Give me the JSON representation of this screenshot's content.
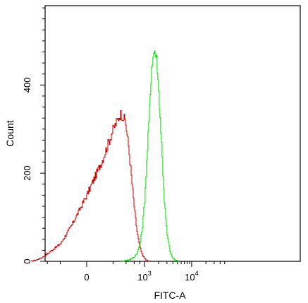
{
  "chart_data": {
    "type": "line",
    "title": "",
    "xlabel": "FITC-A",
    "ylabel": "Count",
    "x_scale": "logicle",
    "x_ticks": [
      {
        "value": 0,
        "base": "0",
        "exp": ""
      },
      {
        "value": 1000,
        "base": "10",
        "exp": "3"
      },
      {
        "value": 10000,
        "base": "10",
        "exp": "4"
      }
    ],
    "y_ticks": [
      0,
      200,
      400
    ],
    "ylim": [
      0,
      580
    ],
    "grid": false,
    "legend": "none",
    "series": [
      {
        "color": "#cc0000",
        "x": [
          -900,
          -700,
          -500,
          -350,
          -200,
          -100,
          0,
          100,
          200,
          300,
          380,
          450,
          520,
          600,
          680,
          760,
          850,
          950,
          1050,
          1150,
          1300
        ],
        "y": [
          0,
          3,
          10,
          22,
          40,
          80,
          150,
          230,
          300,
          335,
          320,
          260,
          190,
          120,
          70,
          40,
          20,
          10,
          4,
          1,
          0
        ]
      },
      {
        "color": "#00dd00",
        "x": [
          300,
          400,
          500,
          600,
          700,
          800,
          900,
          1000,
          1100,
          1250,
          1400,
          1600,
          1800,
          2000,
          2300,
          2600,
          3000,
          3500,
          4000,
          4600,
          5200
        ],
        "y": [
          0,
          2,
          5,
          10,
          20,
          40,
          80,
          140,
          220,
          330,
          440,
          480,
          460,
          380,
          260,
          140,
          60,
          20,
          6,
          2,
          0
        ]
      }
    ]
  }
}
